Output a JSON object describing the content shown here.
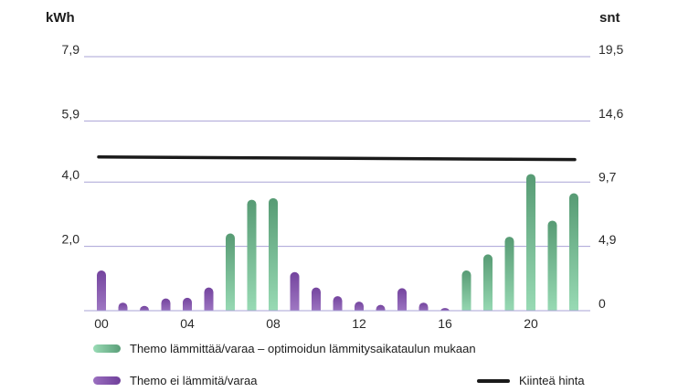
{
  "chart_data": {
    "type": "bar",
    "y_left_unit": "kWh",
    "y_right_unit": "snt",
    "y_left_ticks": [
      "7,9",
      "5,9",
      "4,0",
      "2,0"
    ],
    "y_right_ticks": [
      "19,5",
      "14,6",
      "9,7",
      "4,9",
      "0"
    ],
    "y_left_tick_values": [
      7.9,
      5.9,
      4.0,
      2.0
    ],
    "y_right_tick_values": [
      19.5,
      14.6,
      9.7,
      4.9,
      0
    ],
    "ylim_left": [
      0,
      7.9
    ],
    "ylim_right": [
      0,
      19.5
    ],
    "x_tick_labels": [
      "00",
      "04",
      "08",
      "12",
      "16",
      "20"
    ],
    "hours": [
      0,
      1,
      2,
      3,
      4,
      5,
      6,
      7,
      8,
      9,
      10,
      11,
      12,
      13,
      14,
      15,
      16,
      17,
      18,
      19,
      20,
      21,
      22
    ],
    "series": [
      {
        "name": "Themo lämmittää/varaa – optimoidun lämmitysaikataulun mukaan",
        "color_start": "#8fd4ad",
        "color_end": "#5a9e78",
        "values": [
          null,
          null,
          null,
          null,
          null,
          null,
          2.4,
          3.45,
          3.5,
          null,
          null,
          null,
          null,
          null,
          null,
          null,
          null,
          1.25,
          1.75,
          2.3,
          4.25,
          2.8,
          3.65
        ]
      },
      {
        "name": "Themo ei lämmitä/varaa",
        "color_start": "#9b6fc0",
        "color_end": "#7d4aa6",
        "values": [
          1.25,
          0.25,
          0.15,
          0.38,
          0.4,
          0.72,
          null,
          null,
          null,
          1.2,
          0.72,
          0.45,
          0.28,
          0.18,
          0.7,
          0.25,
          0.08,
          null,
          null,
          null,
          null,
          null,
          null
        ]
      }
    ],
    "fixed_price": {
      "name": "Kiinteä hinta",
      "color": "#1a1a1a",
      "value_start": 11.8,
      "value_end": 11.6
    },
    "gridline_color": "#a9a3d6",
    "grid": true,
    "legend": [
      {
        "label": "Themo lämmittää/varaa – optimoidun lämmitysaikataulun mukaan"
      },
      {
        "label": "Themo ei lämmitä/varaa"
      },
      {
        "label": "Kiinteä hinta"
      }
    ]
  }
}
